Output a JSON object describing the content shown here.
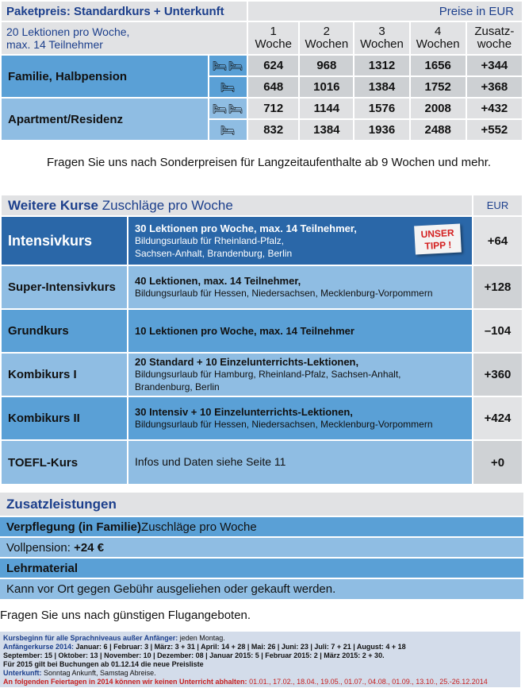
{
  "package": {
    "title": "Paketpreis: Standardkurs + Unterkunft",
    "currency_note": "Preise in EUR",
    "subtitle_line1": "20 Lektionen pro Woche,",
    "subtitle_line2": "max. 14 Teilnehmer",
    "columns": [
      [
        "1",
        "Woche"
      ],
      [
        "2",
        "Wochen"
      ],
      [
        "3",
        "Wochen"
      ],
      [
        "4",
        "Wochen"
      ],
      [
        "Zusatz-",
        "woche"
      ]
    ],
    "groups": [
      {
        "label": "Familie, Halbpension",
        "rows": [
          {
            "icon": "double-bed-icon",
            "beds": "🛏🛏",
            "values": [
              "624",
              "968",
              "1312",
              "1656",
              "+344"
            ]
          },
          {
            "icon": "single-bed-icon",
            "beds": "🛏",
            "values": [
              "648",
              "1016",
              "1384",
              "1752",
              "+368"
            ]
          }
        ]
      },
      {
        "label": "Apartment/Residenz",
        "rows": [
          {
            "icon": "double-bed-icon",
            "beds": "🛏🛏",
            "values": [
              "712",
              "1144",
              "1576",
              "2008",
              "+432"
            ]
          },
          {
            "icon": "single-bed-icon",
            "beds": "🛏",
            "values": [
              "832",
              "1384",
              "1936",
              "2488",
              "+552"
            ]
          }
        ]
      }
    ],
    "note": "Fragen Sie uns nach Sonderpreisen für Langzeitaufenthalte ab 9 Wochen und mehr."
  },
  "courses": {
    "title_bold": "Weitere Kurse",
    "title_rest": " Zuschläge pro Woche",
    "currency": "EUR",
    "stamp_line1": "UNSER",
    "stamp_line2": "TIPP !",
    "rows": [
      {
        "name": "Intensivkurs",
        "bold": "30 Lektionen pro Woche, max. 14 Teilnehmer,",
        "detail": "Bildungsurlaub für  Rheinland-Pfalz,",
        "detail2": "Sachsen-Anhalt, Brandenburg, Berlin",
        "value": "+64"
      },
      {
        "name": "Super-Intensivkurs",
        "bold": "40 Lektionen, max. 14 Teilnehmer,",
        "detail": "Bildungsurlaub für Hessen, Niedersachsen, Mecklenburg-Vorpommern",
        "detail2": "",
        "value": "+128"
      },
      {
        "name": "Grundkurs",
        "bold": "10 Lektionen pro Woche, max. 14 Teilnehmer",
        "detail": "",
        "detail2": "",
        "value": "–104"
      },
      {
        "name": "Kombikurs I",
        "bold": "20 Standard + 10 Einzelunterrichts-Lektionen,",
        "detail": "Bildungsurlaub für Hamburg, Rheinland-Pfalz, Sachsen-Anhalt,",
        "detail2": "Brandenburg, Berlin",
        "value": "+360"
      },
      {
        "name": "Kombikurs II",
        "bold": "30 Intensiv + 10 Einzelunterrichts-Lektionen,",
        "detail": "Bildungsurlaub für Hessen, Niedersachsen, Mecklenburg-Vorpommern",
        "detail2": "",
        "value": "+424"
      },
      {
        "name": "TOEFL-Kurs",
        "bold": "",
        "detail": "Infos und Daten siehe Seite 11",
        "detail2": "",
        "value": "+0"
      }
    ]
  },
  "extras": {
    "title": "Zusatzleistungen",
    "meal_bold": "Verpflegung (in Familie)",
    "meal_rest": " Zuschläge pro Woche",
    "full_label": "Vollpension: ",
    "full_value": "+24 €",
    "material": "Lehrmaterial",
    "material_text": "Kann vor Ort gegen Gebühr ausgeliehen oder gekauft werden."
  },
  "flight_note": "Fragen Sie uns nach günstigen Flugangeboten.",
  "footer": {
    "l1a": "Kursbeginn für alle Sprachniveaus außer Anfänger:",
    "l1b": " jeden Montag.",
    "l2a": "Anfängerkurse 2014:",
    "l2b": " Januar: 6 | Februar: 3 | März: 3 + 31 | April: 14 + 28 | Mai: 26 | Juni: 23 | Juli: 7 + 21 | August: 4 + 18",
    "l3": "September: 15 | Oktober: 13 | November: 10 | Dezember: 08 | Januar 2015: 5 | Februar 2015: 2 | März 2015: 2 + 30.",
    "l4": "Für 2015 gilt bei Buchungen ab 01.12.14 die neue Preisliste",
    "l5a": "Unterkunft:",
    "l5b": " Sonntag Ankunft, Samstag Abreise.",
    "l6a": "An folgenden Feiertagen in 2014 können wir keinen Unterricht abhalten:",
    "l6b": " 01.01., 17.02., 18.04., 19.05., 01.07., 04.08., 01.09., 13.10., 25.-26.12.2014"
  }
}
